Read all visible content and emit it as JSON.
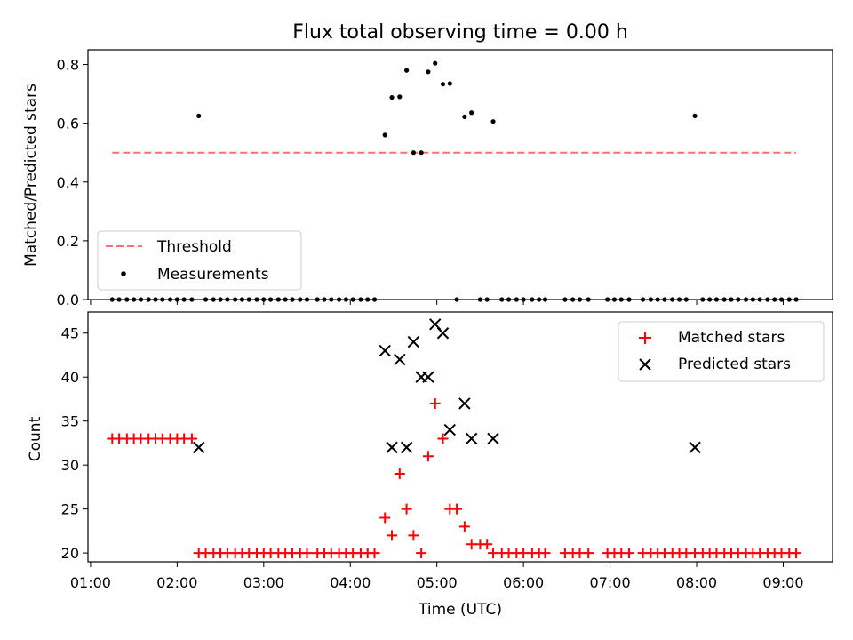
{
  "colors": {
    "threshold": "#ff6f6f",
    "matched": "#ff0000",
    "predicted": "#000000",
    "measurement": "#000000"
  },
  "chart_data": [
    {
      "type": "scatter",
      "title": "Flux total observing time = 0.00 h",
      "ylabel": "Matched/Predicted stars",
      "xlabel": "",
      "xlim": [
        0.97,
        9.57
      ],
      "ylim": [
        0.0,
        0.85
      ],
      "yticks": [
        0.0,
        0.2,
        0.4,
        0.6,
        0.8
      ],
      "ytick_labels": [
        "0.0",
        "0.2",
        "0.4",
        "0.6",
        "0.8"
      ],
      "legend_position": "lower-left",
      "threshold": {
        "name": "Threshold",
        "value": 0.5,
        "x": [
          1.25,
          9.15
        ]
      },
      "series": [
        {
          "name": "Measurements",
          "points": [
            [
              1.25,
              0
            ],
            [
              1.33,
              0
            ],
            [
              1.42,
              0
            ],
            [
              1.5,
              0
            ],
            [
              1.58,
              0
            ],
            [
              1.67,
              0
            ],
            [
              1.75,
              0
            ],
            [
              1.83,
              0
            ],
            [
              1.92,
              0
            ],
            [
              2.0,
              0
            ],
            [
              2.08,
              0
            ],
            [
              2.17,
              0
            ],
            [
              2.25,
              0.625
            ],
            [
              2.33,
              0
            ],
            [
              2.42,
              0
            ],
            [
              2.5,
              0
            ],
            [
              2.58,
              0
            ],
            [
              2.67,
              0
            ],
            [
              2.75,
              0
            ],
            [
              2.83,
              0
            ],
            [
              2.92,
              0
            ],
            [
              3.0,
              0
            ],
            [
              3.08,
              0
            ],
            [
              3.17,
              0
            ],
            [
              3.25,
              0
            ],
            [
              3.33,
              0
            ],
            [
              3.42,
              0
            ],
            [
              3.5,
              0
            ],
            [
              3.62,
              0
            ],
            [
              3.7,
              0
            ],
            [
              3.78,
              0
            ],
            [
              3.87,
              0
            ],
            [
              3.95,
              0
            ],
            [
              4.03,
              0
            ],
            [
              4.12,
              0
            ],
            [
              4.2,
              0
            ],
            [
              4.28,
              0
            ],
            [
              4.4,
              0.56
            ],
            [
              4.48,
              0.688
            ],
            [
              4.57,
              0.69
            ],
            [
              4.65,
              0.78
            ],
            [
              4.73,
              0.5
            ],
            [
              4.82,
              0.5
            ],
            [
              4.9,
              0.775
            ],
            [
              4.98,
              0.804
            ],
            [
              5.07,
              0.733
            ],
            [
              5.15,
              0.735
            ],
            [
              5.23,
              0
            ],
            [
              5.32,
              0.622
            ],
            [
              5.4,
              0.636
            ],
            [
              5.5,
              0
            ],
            [
              5.58,
              0
            ],
            [
              5.65,
              0.606
            ],
            [
              5.75,
              0
            ],
            [
              5.83,
              0
            ],
            [
              5.92,
              0
            ],
            [
              6.0,
              0
            ],
            [
              6.1,
              0
            ],
            [
              6.18,
              0
            ],
            [
              6.25,
              0
            ],
            [
              6.48,
              0
            ],
            [
              6.57,
              0
            ],
            [
              6.65,
              0
            ],
            [
              6.75,
              0
            ],
            [
              6.97,
              0
            ],
            [
              7.05,
              0
            ],
            [
              7.13,
              0
            ],
            [
              7.22,
              0
            ],
            [
              7.38,
              0
            ],
            [
              7.47,
              0
            ],
            [
              7.55,
              0
            ],
            [
              7.63,
              0
            ],
            [
              7.72,
              0
            ],
            [
              7.8,
              0
            ],
            [
              7.88,
              0
            ],
            [
              7.98,
              0.625
            ],
            [
              8.07,
              0
            ],
            [
              8.15,
              0
            ],
            [
              8.23,
              0
            ],
            [
              8.32,
              0
            ],
            [
              8.4,
              0
            ],
            [
              8.48,
              0
            ],
            [
              8.57,
              0
            ],
            [
              8.65,
              0
            ],
            [
              8.73,
              0
            ],
            [
              8.82,
              0
            ],
            [
              8.9,
              0
            ],
            [
              8.98,
              0
            ],
            [
              9.07,
              0
            ],
            [
              9.15,
              0
            ]
          ]
        }
      ]
    },
    {
      "type": "scatter",
      "title": "",
      "xlabel": "Time (UTC)",
      "ylabel": "Count",
      "xlim": [
        0.97,
        9.57
      ],
      "ylim": [
        19,
        47.4
      ],
      "xticks": [
        1,
        2,
        3,
        4,
        5,
        6,
        7,
        8,
        9
      ],
      "xtick_labels": [
        "01:00",
        "02:00",
        "03:00",
        "04:00",
        "05:00",
        "06:00",
        "07:00",
        "08:00",
        "09:00"
      ],
      "yticks": [
        20,
        25,
        30,
        35,
        40,
        45
      ],
      "ytick_labels": [
        "20",
        "25",
        "30",
        "35",
        "40",
        "45"
      ],
      "legend_position": "upper-right",
      "series": [
        {
          "name": "Matched stars",
          "marker": "plus",
          "points": [
            [
              1.25,
              33
            ],
            [
              1.33,
              33
            ],
            [
              1.42,
              33
            ],
            [
              1.5,
              33
            ],
            [
              1.58,
              33
            ],
            [
              1.67,
              33
            ],
            [
              1.75,
              33
            ],
            [
              1.83,
              33
            ],
            [
              1.92,
              33
            ],
            [
              2.0,
              33
            ],
            [
              2.08,
              33
            ],
            [
              2.17,
              33
            ],
            [
              2.25,
              20
            ],
            [
              2.33,
              20
            ],
            [
              2.42,
              20
            ],
            [
              2.5,
              20
            ],
            [
              2.58,
              20
            ],
            [
              2.67,
              20
            ],
            [
              2.75,
              20
            ],
            [
              2.83,
              20
            ],
            [
              2.92,
              20
            ],
            [
              3.0,
              20
            ],
            [
              3.08,
              20
            ],
            [
              3.17,
              20
            ],
            [
              3.25,
              20
            ],
            [
              3.33,
              20
            ],
            [
              3.42,
              20
            ],
            [
              3.5,
              20
            ],
            [
              3.62,
              20
            ],
            [
              3.7,
              20
            ],
            [
              3.78,
              20
            ],
            [
              3.87,
              20
            ],
            [
              3.95,
              20
            ],
            [
              4.03,
              20
            ],
            [
              4.12,
              20
            ],
            [
              4.2,
              20
            ],
            [
              4.28,
              20
            ],
            [
              4.4,
              24
            ],
            [
              4.48,
              22
            ],
            [
              4.57,
              29
            ],
            [
              4.65,
              25
            ],
            [
              4.73,
              22
            ],
            [
              4.82,
              20
            ],
            [
              4.9,
              31
            ],
            [
              4.98,
              37
            ],
            [
              5.07,
              33
            ],
            [
              5.15,
              25
            ],
            [
              5.23,
              25
            ],
            [
              5.32,
              23
            ],
            [
              5.4,
              21
            ],
            [
              5.5,
              21
            ],
            [
              5.58,
              21
            ],
            [
              5.65,
              20
            ],
            [
              5.75,
              20
            ],
            [
              5.83,
              20
            ],
            [
              5.92,
              20
            ],
            [
              6.0,
              20
            ],
            [
              6.1,
              20
            ],
            [
              6.18,
              20
            ],
            [
              6.25,
              20
            ],
            [
              6.48,
              20
            ],
            [
              6.57,
              20
            ],
            [
              6.65,
              20
            ],
            [
              6.75,
              20
            ],
            [
              6.97,
              20
            ],
            [
              7.05,
              20
            ],
            [
              7.13,
              20
            ],
            [
              7.22,
              20
            ],
            [
              7.38,
              20
            ],
            [
              7.47,
              20
            ],
            [
              7.55,
              20
            ],
            [
              7.63,
              20
            ],
            [
              7.72,
              20
            ],
            [
              7.8,
              20
            ],
            [
              7.88,
              20
            ],
            [
              7.98,
              20
            ],
            [
              8.07,
              20
            ],
            [
              8.15,
              20
            ],
            [
              8.23,
              20
            ],
            [
              8.32,
              20
            ],
            [
              8.4,
              20
            ],
            [
              8.48,
              20
            ],
            [
              8.57,
              20
            ],
            [
              8.65,
              20
            ],
            [
              8.73,
              20
            ],
            [
              8.82,
              20
            ],
            [
              8.9,
              20
            ],
            [
              8.98,
              20
            ],
            [
              9.07,
              20
            ],
            [
              9.15,
              20
            ]
          ]
        },
        {
          "name": "Predicted stars",
          "marker": "x",
          "points": [
            [
              2.25,
              32
            ],
            [
              4.4,
              43
            ],
            [
              4.48,
              32
            ],
            [
              4.57,
              42
            ],
            [
              4.65,
              32
            ],
            [
              4.73,
              44
            ],
            [
              4.82,
              40
            ],
            [
              4.9,
              40
            ],
            [
              4.98,
              46
            ],
            [
              5.07,
              45
            ],
            [
              5.15,
              34
            ],
            [
              5.32,
              37
            ],
            [
              5.4,
              33
            ],
            [
              5.65,
              33
            ],
            [
              7.98,
              32
            ]
          ]
        }
      ]
    }
  ]
}
